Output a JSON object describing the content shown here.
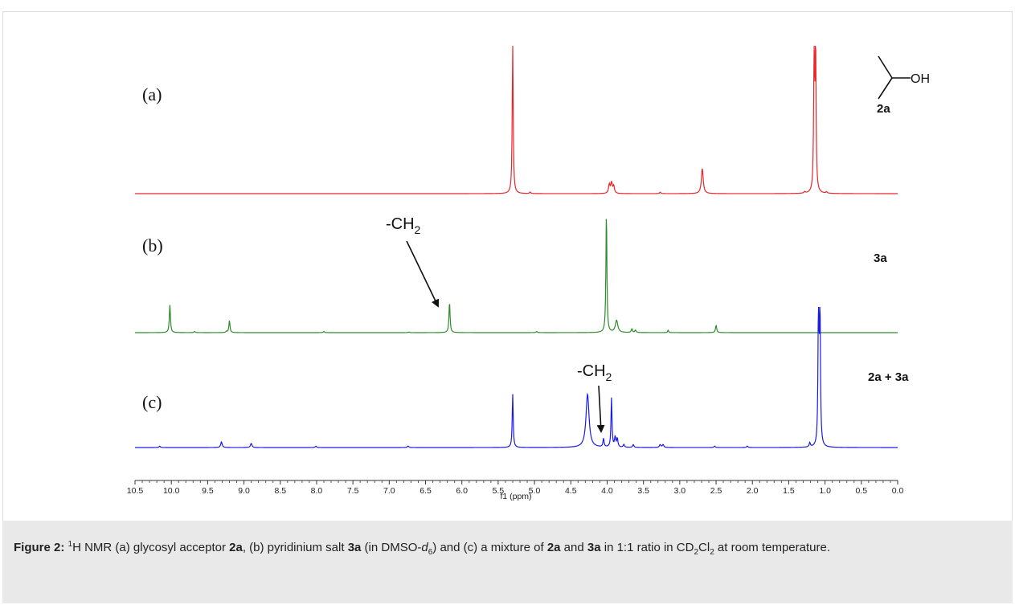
{
  "chart_data": {
    "type": "line",
    "xlabel": "f1 (ppm)",
    "xlim": [
      10.5,
      0.0
    ],
    "x_reversed": true,
    "ticks": [
      "10.5",
      "10.0",
      "9.5",
      "9.0",
      "8.5",
      "8.0",
      "7.5",
      "7.0",
      "6.5",
      "6.0",
      "5.5",
      "5.0",
      "4.5",
      "4.0",
      "3.5",
      "3.0",
      "2.5",
      "2.0",
      "1.5",
      "1.0",
      "0.5",
      "0.0"
    ],
    "series": [
      {
        "name": "",
        "panel": "(a)",
        "compound": "2a",
        "color": "#e8262a",
        "peaks": [
          {
            "ppm": 5.3,
            "height": 1.0,
            "width": 0.008
          },
          {
            "ppm": 5.06,
            "height": 0.01,
            "width": 0.01
          },
          {
            "ppm": 3.97,
            "height": 0.06,
            "width": 0.012
          },
          {
            "ppm": 3.94,
            "height": 0.07,
            "width": 0.012
          },
          {
            "ppm": 3.91,
            "height": 0.05,
            "width": 0.012
          },
          {
            "ppm": 3.27,
            "height": 0.01,
            "width": 0.01
          },
          {
            "ppm": 2.69,
            "height": 0.17,
            "width": 0.015
          },
          {
            "ppm": 1.28,
            "height": 0.01,
            "width": 0.01
          },
          {
            "ppm": 1.15,
            "height": 0.94,
            "width": 0.008
          },
          {
            "ppm": 1.13,
            "height": 0.96,
            "width": 0.008
          },
          {
            "ppm": 0.98,
            "height": 0.01,
            "width": 0.01
          }
        ]
      },
      {
        "name": "",
        "panel": "(b)",
        "compound": "3a",
        "color": "#2e8b2e",
        "peaks": [
          {
            "ppm": 10.02,
            "height": 0.23,
            "width": 0.009
          },
          {
            "ppm": 9.68,
            "height": 0.01,
            "width": 0.01
          },
          {
            "ppm": 9.2,
            "height": 0.1,
            "width": 0.009
          },
          {
            "ppm": 9.24,
            "height": 0.01,
            "width": 0.01
          },
          {
            "ppm": 7.9,
            "height": 0.01,
            "width": 0.01
          },
          {
            "ppm": 6.73,
            "height": 0.005,
            "width": 0.01
          },
          {
            "ppm": 6.17,
            "height": 0.25,
            "width": 0.009
          },
          {
            "ppm": 4.97,
            "height": 0.01,
            "width": 0.01
          },
          {
            "ppm": 4.01,
            "height": 1.0,
            "width": 0.008
          },
          {
            "ppm": 3.87,
            "height": 0.1,
            "width": 0.02
          },
          {
            "ppm": 3.66,
            "height": 0.03,
            "width": 0.01
          },
          {
            "ppm": 3.61,
            "height": 0.02,
            "width": 0.01
          },
          {
            "ppm": 3.16,
            "height": 0.02,
            "width": 0.008
          },
          {
            "ppm": 2.5,
            "height": 0.06,
            "width": 0.01
          }
        ]
      },
      {
        "name": "",
        "panel": "(c)",
        "compound": "2a + 3a",
        "color": "#1a1ae6",
        "peaks": [
          {
            "ppm": 10.16,
            "height": 0.01,
            "width": 0.01
          },
          {
            "ppm": 9.31,
            "height": 0.04,
            "width": 0.012
          },
          {
            "ppm": 8.9,
            "height": 0.03,
            "width": 0.012
          },
          {
            "ppm": 8.01,
            "height": 0.01,
            "width": 0.01
          },
          {
            "ppm": 6.74,
            "height": 0.01,
            "width": 0.012
          },
          {
            "ppm": 5.3,
            "height": 0.38,
            "width": 0.008
          },
          {
            "ppm": 4.27,
            "height": 0.38,
            "width": 0.025
          },
          {
            "ppm": 4.05,
            "height": 0.06,
            "width": 0.009
          },
          {
            "ppm": 3.94,
            "height": 0.35,
            "width": 0.008
          },
          {
            "ppm": 3.89,
            "height": 0.07,
            "width": 0.01
          },
          {
            "ppm": 3.86,
            "height": 0.06,
            "width": 0.01
          },
          {
            "ppm": 3.77,
            "height": 0.02,
            "width": 0.01
          },
          {
            "ppm": 3.64,
            "height": 0.02,
            "width": 0.01
          },
          {
            "ppm": 3.27,
            "height": 0.02,
            "width": 0.012
          },
          {
            "ppm": 3.23,
            "height": 0.02,
            "width": 0.012
          },
          {
            "ppm": 2.52,
            "height": 0.01,
            "width": 0.01
          },
          {
            "ppm": 2.07,
            "height": 0.01,
            "width": 0.01
          },
          {
            "ppm": 1.21,
            "height": 0.03,
            "width": 0.01
          },
          {
            "ppm": 1.09,
            "height": 1.0,
            "width": 0.008
          },
          {
            "ppm": 1.07,
            "height": 0.98,
            "width": 0.008
          }
        ]
      }
    ],
    "annotations": [
      {
        "panel": "(b)",
        "text": "-CH",
        "subscript": "2",
        "ppm": 6.17
      },
      {
        "panel": "(c)",
        "text": "-CH",
        "subscript": "2",
        "ppm": 4.05
      }
    ],
    "structure": {
      "label": "OH"
    }
  },
  "caption": {
    "label": "Figure 2:",
    "sup1": "1",
    "t1": "H NMR (a) glycosyl acceptor ",
    "b1": "2a",
    "t2": ", (b) pyridinium salt ",
    "b2": "3a",
    "t3": " (in DMSO-",
    "i1": "d",
    "sub1": "6",
    "t4": ") and (c) a mixture of ",
    "b3": "2a",
    "t5": " and ",
    "b4": "3a",
    "t6": " in 1:1 ratio in CD",
    "sub2": "2",
    "t7": "Cl",
    "sub3": "2",
    "t8": " at room temperature."
  }
}
